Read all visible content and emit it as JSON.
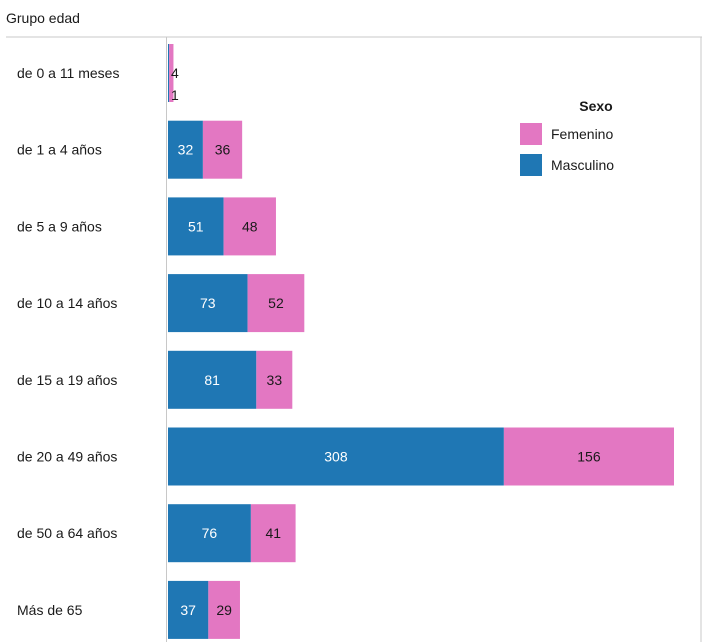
{
  "chart_data": {
    "type": "bar",
    "orientation": "horizontal",
    "stacked": true,
    "category_header": "Grupo edad",
    "categories": [
      "de 0 a 11 meses",
      "de 1 a 4 años",
      "de 5 a 9 años",
      "de 10 a 14 años",
      "de 15 a 19 años",
      "de 20 a 49 años",
      "de 50 a 64 años",
      "Más de 65"
    ],
    "series": [
      {
        "name": "Masculino",
        "color": "#1f77b4",
        "label_color": "#ffffff",
        "values": [
          1,
          32,
          51,
          73,
          81,
          308,
          76,
          37
        ]
      },
      {
        "name": "Femenino",
        "color": "#e377c2",
        "label_color": "#1a1a1a",
        "values": [
          4,
          36,
          48,
          52,
          33,
          156,
          41,
          29
        ]
      }
    ],
    "legend": {
      "title": "Sexo",
      "placement": "top-right",
      "entries": [
        "Femenino",
        "Masculino"
      ]
    },
    "xlim": [
      0,
      464
    ],
    "grid": false
  }
}
